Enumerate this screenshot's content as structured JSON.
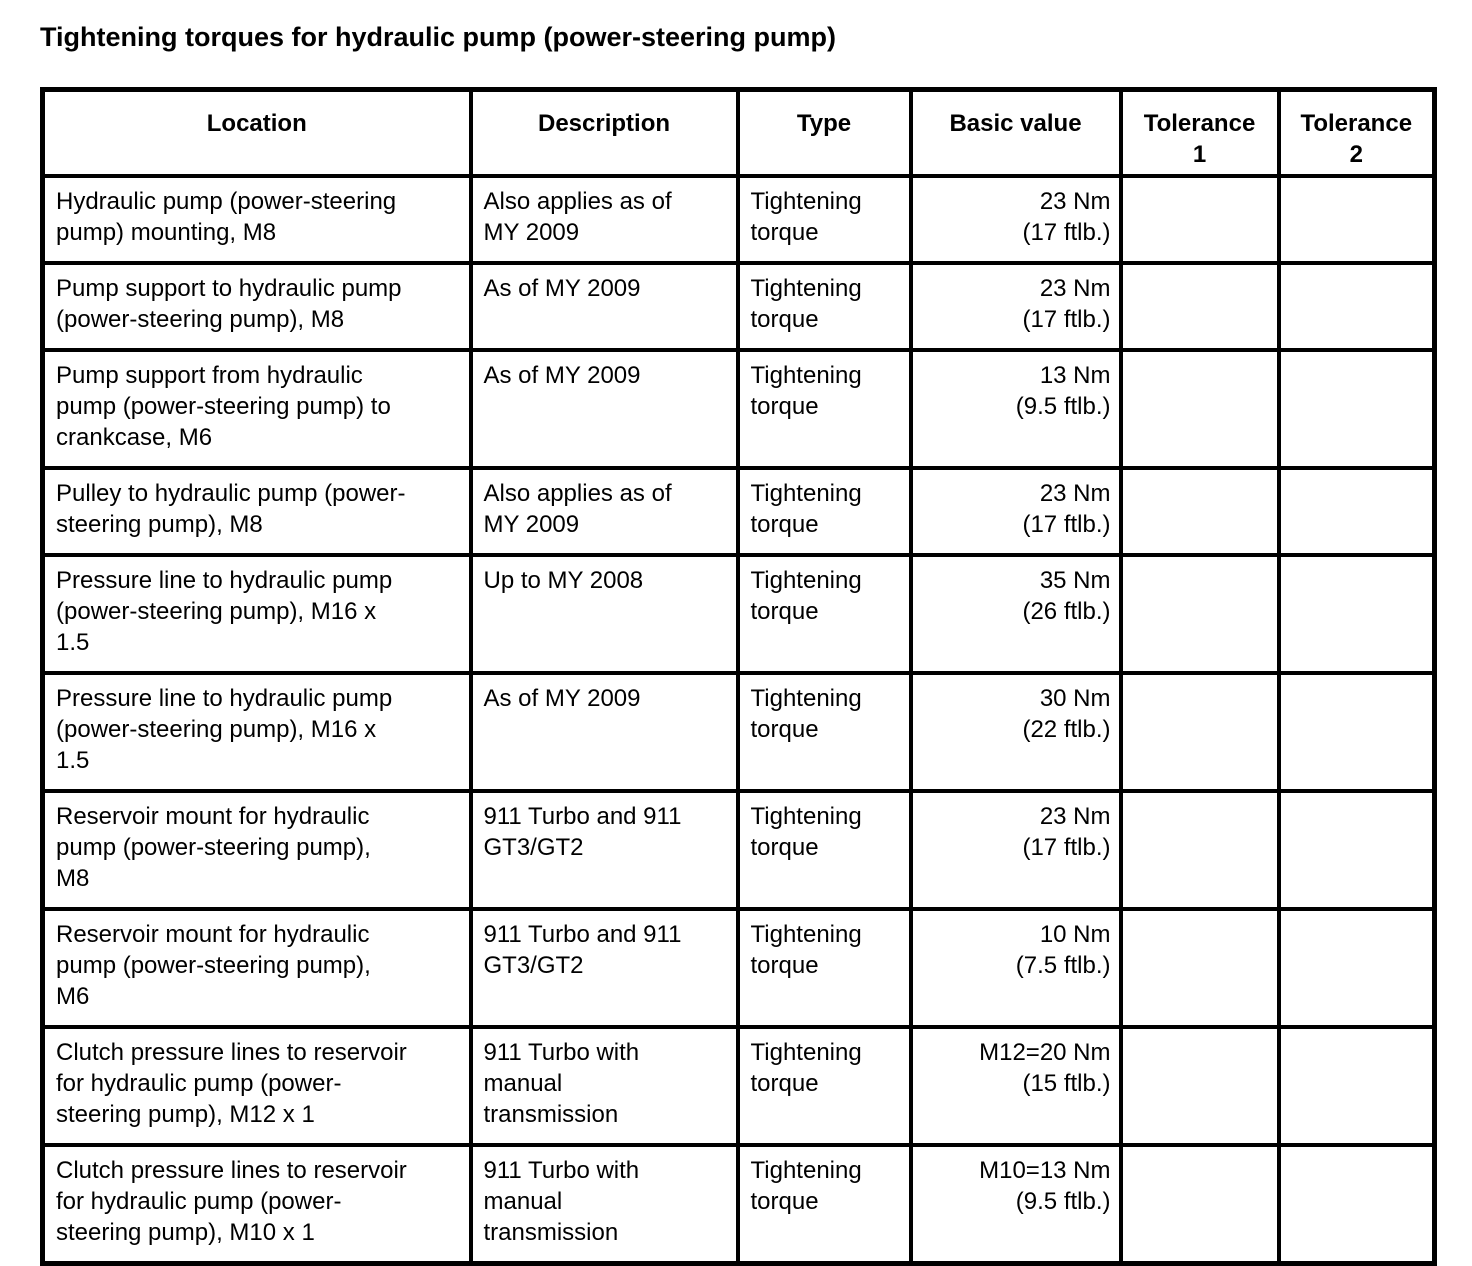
{
  "title": "Tightening torques for hydraulic pump (power-steering pump)",
  "table": {
    "columns": [
      "Location",
      "Description",
      "Type",
      "Basic value",
      "Tolerance\n1",
      "Tolerance\n2"
    ],
    "rows": [
      {
        "location": "Hydraulic pump (power-steering\npump) mounting, M8",
        "description": "Also applies as of\nMY 2009",
        "type": "Tightening\ntorque",
        "basic_value": "23 Nm\n(17 ftlb.)",
        "tolerance_1": "",
        "tolerance_2": ""
      },
      {
        "location": "Pump support to hydraulic pump\n(power-steering pump), M8",
        "description": "As of MY 2009",
        "type": "Tightening\ntorque",
        "basic_value": "23 Nm\n(17 ftlb.)",
        "tolerance_1": "",
        "tolerance_2": ""
      },
      {
        "location": "Pump support from hydraulic\npump (power-steering pump) to\ncrankcase, M6",
        "description": "As of MY 2009",
        "type": "Tightening\ntorque",
        "basic_value": "13 Nm\n(9.5 ftlb.)",
        "tolerance_1": "",
        "tolerance_2": ""
      },
      {
        "location": "Pulley to hydraulic pump (power-\nsteering pump), M8",
        "description": "Also applies as of\nMY 2009",
        "type": "Tightening\ntorque",
        "basic_value": "23 Nm\n(17 ftlb.)",
        "tolerance_1": "",
        "tolerance_2": ""
      },
      {
        "location": "Pressure line to hydraulic pump\n(power-steering pump), M16 x\n1.5",
        "description": "Up to MY 2008",
        "type": "Tightening\ntorque",
        "basic_value": "35 Nm\n(26 ftlb.)",
        "tolerance_1": "",
        "tolerance_2": ""
      },
      {
        "location": "Pressure line to hydraulic pump\n(power-steering pump), M16 x\n1.5",
        "description": "As of MY 2009",
        "type": "Tightening\ntorque",
        "basic_value": "30 Nm\n(22 ftlb.)",
        "tolerance_1": "",
        "tolerance_2": ""
      },
      {
        "location": "Reservoir mount for hydraulic\npump (power-steering pump),\nM8",
        "description": "911 Turbo and 911\nGT3/GT2",
        "type": "Tightening\ntorque",
        "basic_value": "23 Nm\n(17 ftlb.)",
        "tolerance_1": "",
        "tolerance_2": ""
      },
      {
        "location": "Reservoir mount for hydraulic\npump (power-steering pump),\nM6",
        "description": "911 Turbo and 911\nGT3/GT2",
        "type": "Tightening\ntorque",
        "basic_value": "10 Nm\n(7.5 ftlb.)",
        "tolerance_1": "",
        "tolerance_2": ""
      },
      {
        "location": "Clutch pressure lines to reservoir\nfor hydraulic pump (power-\nsteering pump), M12 x 1",
        "description": "911 Turbo with\nmanual\ntransmission",
        "type": "Tightening\ntorque",
        "basic_value": "M12=20 Nm\n(15 ftlb.)",
        "tolerance_1": "",
        "tolerance_2": ""
      },
      {
        "location": "Clutch pressure lines to reservoir\nfor hydraulic pump (power-\nsteering pump), M10 x 1",
        "description": "911 Turbo with\nmanual\ntransmission",
        "type": "Tightening\ntorque",
        "basic_value": "M10=13 Nm\n(9.5 ftlb.)",
        "tolerance_1": "",
        "tolerance_2": ""
      }
    ]
  }
}
